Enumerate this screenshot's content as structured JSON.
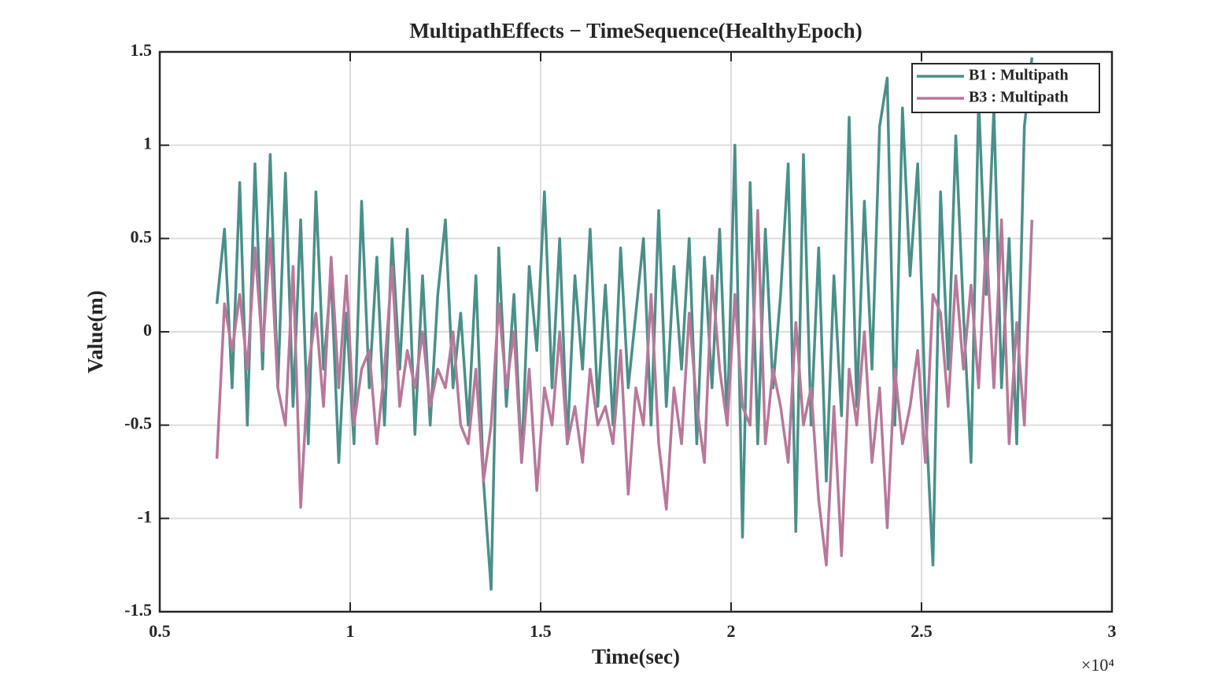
{
  "chart_data": {
    "type": "line",
    "title": "MultipathEffects − TimeSequence(HealthyEpoch)",
    "x_label": "Time(sec)",
    "y_label": "Value(m)",
    "x_multiplier": "×10⁴",
    "x": [
      6500,
      6700,
      6900,
      7100,
      7300,
      7500,
      7700,
      7900,
      8100,
      8300,
      8500,
      8700,
      8900,
      9100,
      9300,
      9500,
      9700,
      9900,
      10100,
      10300,
      10500,
      10700,
      10900,
      11100,
      11300,
      11500,
      11700,
      11900,
      12100,
      12300,
      12500,
      12700,
      12900,
      13100,
      13300,
      13500,
      13700,
      13900,
      14100,
      14300,
      14500,
      14700,
      14900,
      15100,
      15300,
      15500,
      15700,
      15900,
      16100,
      16300,
      16500,
      16700,
      16900,
      17100,
      17300,
      17500,
      17700,
      17900,
      18100,
      18300,
      18500,
      18700,
      18900,
      19100,
      19300,
      19500,
      19700,
      19900,
      20100,
      20300,
      20500,
      20700,
      20900,
      21100,
      21300,
      21500,
      21700,
      21900,
      22100,
      22300,
      22500,
      22700,
      22900,
      23100,
      23300,
      23500,
      23700,
      23900,
      24100,
      24300,
      24500,
      24700,
      24900,
      25100,
      25300,
      25500,
      25700,
      25900,
      26100,
      26300,
      26500,
      26700,
      26900,
      27100,
      27300,
      27500,
      27700,
      27900
    ],
    "series": [
      {
        "name": "B1 : Multipath",
        "color": "#4a9088",
        "values": [
          0.15,
          0.55,
          -0.3,
          0.8,
          -0.5,
          0.9,
          -0.2,
          0.95,
          -0.3,
          0.85,
          -0.4,
          0.6,
          -0.6,
          0.75,
          -0.2,
          0.3,
          -0.7,
          0.1,
          -0.6,
          0.7,
          -0.3,
          0.4,
          -0.5,
          0.5,
          -0.2,
          0.55,
          -0.55,
          0.3,
          -0.5,
          0.2,
          0.6,
          -0.3,
          0.1,
          -0.5,
          0.3,
          -0.8,
          -1.38,
          0.45,
          -0.4,
          0.2,
          -0.7,
          0.35,
          -0.1,
          0.75,
          -0.3,
          0.5,
          -0.6,
          0.3,
          -0.2,
          0.55,
          -0.4,
          0.25,
          -0.5,
          0.45,
          -0.3,
          0.1,
          0.5,
          -0.5,
          0.65,
          -0.4,
          0.35,
          -0.2,
          0.5,
          -0.6,
          0.4,
          -0.3,
          0.55,
          -0.5,
          1.0,
          -1.1,
          0.8,
          -0.6,
          0.55,
          -0.3,
          0.2,
          0.9,
          -1.07,
          0.95,
          -0.5,
          0.45,
          -0.8,
          0.3,
          -0.45,
          1.15,
          -0.4,
          0.7,
          -0.2,
          1.1,
          1.36,
          -0.5,
          1.2,
          0.3,
          0.9,
          -0.4,
          -1.25,
          0.75,
          -0.2,
          1.05,
          0.1,
          -0.7,
          1.25,
          0.2,
          1.2,
          -0.3,
          0.5,
          -0.6,
          1.1,
          1.47
        ]
      },
      {
        "name": "B3 : Multipath",
        "color": "#b8789a",
        "values": [
          -0.68,
          0.15,
          -0.1,
          0.2,
          -0.2,
          0.45,
          -0.1,
          0.5,
          -0.3,
          -0.5,
          0.35,
          -0.94,
          -0.2,
          0.1,
          -0.4,
          0.4,
          -0.3,
          0.3,
          -0.5,
          -0.2,
          -0.1,
          -0.6,
          -0.2,
          0.35,
          -0.4,
          -0.1,
          -0.3,
          0.0,
          -0.4,
          -0.2,
          -0.3,
          0.0,
          -0.5,
          -0.6,
          -0.2,
          -0.8,
          -0.5,
          0.15,
          -0.3,
          0.0,
          -0.7,
          -0.2,
          -0.85,
          -0.3,
          -0.5,
          0.0,
          -0.6,
          -0.4,
          -0.7,
          -0.2,
          -0.5,
          -0.4,
          -0.6,
          -0.1,
          -0.87,
          -0.3,
          -0.5,
          0.2,
          -0.6,
          -0.95,
          -0.3,
          -0.6,
          0.1,
          -0.4,
          -0.7,
          0.3,
          -0.2,
          -0.5,
          0.2,
          -0.4,
          -0.5,
          0.65,
          -0.6,
          -0.2,
          -0.4,
          -0.7,
          0.05,
          -0.5,
          -0.3,
          -0.9,
          -1.25,
          -0.4,
          -1.2,
          -0.2,
          -0.5,
          0.0,
          -0.7,
          -0.3,
          -1.05,
          -0.2,
          -0.6,
          -0.4,
          -0.1,
          -0.7,
          0.2,
          0.1,
          -0.4,
          0.3,
          -0.2,
          0.25,
          -0.3,
          0.5,
          -0.3,
          0.6,
          -0.6,
          0.05,
          -0.5,
          0.6
        ]
      }
    ],
    "xlim": [
      5000,
      30000
    ],
    "xticks": [
      {
        "value": 5000,
        "label": "0.5"
      },
      {
        "value": 10000,
        "label": "1"
      },
      {
        "value": 15000,
        "label": "1.5"
      },
      {
        "value": 20000,
        "label": "2"
      },
      {
        "value": 25000,
        "label": "2.5"
      },
      {
        "value": 30000,
        "label": "3"
      }
    ],
    "ylim": [
      -1.5,
      1.5
    ],
    "yticks": [
      -1.5,
      -1,
      -0.5,
      0,
      0.5,
      1,
      1.5
    ],
    "grid": true,
    "legend": "top-right"
  }
}
